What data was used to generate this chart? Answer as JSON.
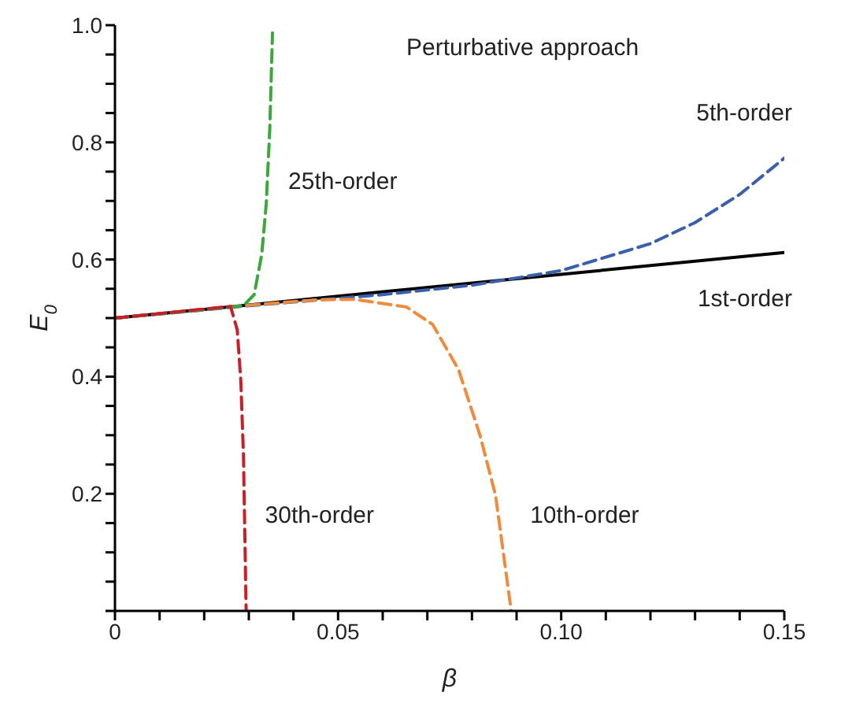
{
  "chart_data": {
    "type": "line",
    "title": "Perturbative approach",
    "xlabel": "β",
    "ylabel": "E$_{0}$",
    "xlim": [
      0,
      0.15
    ],
    "ylim": [
      0,
      1.0
    ],
    "xticks": [
      0,
      {
        "value": 0.01,
        "label": null
      },
      {
        "value": 0.02,
        "label": null
      },
      {
        "value": 0.03,
        "label": null
      },
      {
        "value": 0.04,
        "label": null
      },
      0.05,
      {
        "value": 0.06,
        "label": null
      },
      {
        "value": 0.07,
        "label": null
      },
      {
        "value": 0.08,
        "label": null
      },
      {
        "value": 0.09,
        "label": null
      },
      {
        "value": 0.1,
        "label": "0.10"
      },
      {
        "value": 0.11,
        "label": null
      },
      {
        "value": 0.12,
        "label": null
      },
      {
        "value": 0.13,
        "label": null
      },
      {
        "value": 0.14,
        "label": null
      },
      0.15
    ],
    "yticks": [
      {
        "value": 0,
        "label": null
      },
      {
        "value": 0.05,
        "label": null
      },
      {
        "value": 0.1,
        "label": null
      },
      {
        "value": 0.15,
        "label": null
      },
      0.2,
      {
        "value": 0.25,
        "label": null
      },
      {
        "value": 0.3,
        "label": null
      },
      {
        "value": 0.35,
        "label": null
      },
      0.4,
      {
        "value": 0.45,
        "label": null
      },
      {
        "value": 0.5,
        "label": null
      },
      {
        "value": 0.55,
        "label": null
      },
      0.6,
      {
        "value": 0.65,
        "label": null
      },
      {
        "value": 0.7,
        "label": null
      },
      {
        "value": 0.75,
        "label": null
      },
      0.8,
      {
        "value": 0.85,
        "label": null
      },
      {
        "value": 0.9,
        "label": null
      },
      {
        "value": 0.95,
        "label": null
      },
      {
        "value": 1.0,
        "label": "1.0"
      }
    ],
    "grid": false,
    "legend": false,
    "marker": "none",
    "series": [
      {
        "name": "1st-order",
        "color": "#000000",
        "line_style": "solid",
        "x": [
          0,
          0.15
        ],
        "values": [
          0.5,
          0.612
        ]
      },
      {
        "name": "5th-order",
        "color": "#3a5fad",
        "line_style": "dashed",
        "x": [
          0,
          0.03,
          0.06,
          0.08,
          0.1,
          0.12,
          0.13,
          0.14,
          0.15
        ],
        "values": [
          0.5,
          0.521,
          0.54,
          0.556,
          0.581,
          0.627,
          0.663,
          0.711,
          0.773
        ]
      },
      {
        "name": "10th-order",
        "color": "#f08a3c",
        "line_style": "dashed",
        "x": [
          0,
          0.03,
          0.045,
          0.0535,
          0.0653,
          0.0712,
          0.077,
          0.0818,
          0.0853,
          0.0888
        ],
        "values": [
          0.5,
          0.522,
          0.531,
          0.532,
          0.519,
          0.489,
          0.412,
          0.3,
          0.197,
          0
        ]
      },
      {
        "name": "25th-order",
        "color": "#3aa83a",
        "line_style": "dashed",
        "x": [
          0,
          0.0288,
          0.0312,
          0.0329,
          0.0339,
          0.0347,
          0.0353
        ],
        "values": [
          0.5,
          0.521,
          0.54,
          0.609,
          0.695,
          0.824,
          0.987
        ]
      },
      {
        "name": "30th-order",
        "color": "#c8202a",
        "line_style": "dashed",
        "x": [
          0,
          0.0259,
          0.0274,
          0.0282,
          0.0288,
          0.0294
        ],
        "values": [
          0.5,
          0.52,
          0.48,
          0.394,
          0.265,
          0
        ]
      }
    ]
  }
}
